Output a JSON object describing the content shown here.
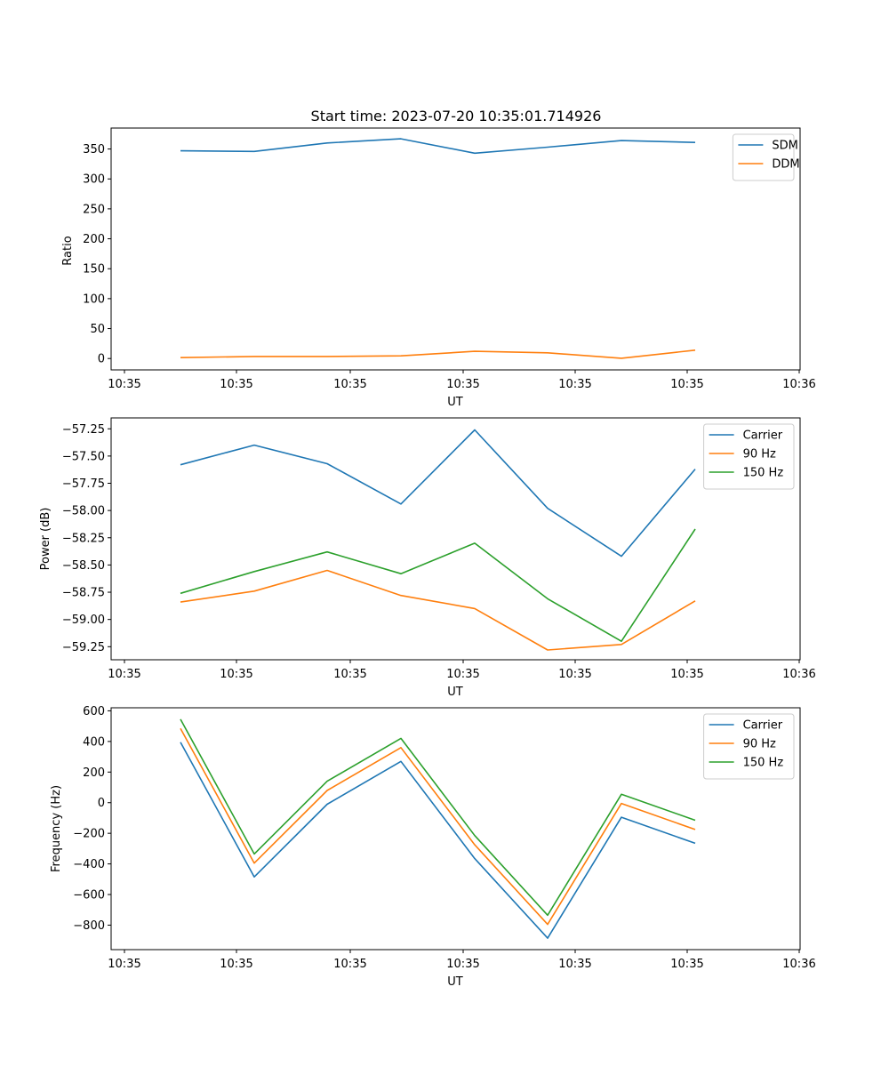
{
  "colors": {
    "c0": "#1f77b4",
    "c1": "#ff7f0e",
    "c2": "#2ca02c",
    "frame": "#000000",
    "legend_border": "#cccccc"
  },
  "chart_data": [
    {
      "type": "line",
      "title": "Start time: 2023-07-20 10:35:01.714926",
      "xlabel": "UT",
      "ylabel": "Ratio",
      "xticks": [
        "10:35",
        "10:35",
        "10:35",
        "10:35",
        "10:35",
        "10:35",
        "10:36"
      ],
      "yticks": [
        0,
        50,
        100,
        150,
        200,
        250,
        300,
        350
      ],
      "ylim": [
        -19,
        385
      ],
      "legend_position": "top-right",
      "series": [
        {
          "name": "SDM",
          "color": "#1f77b4",
          "values": [
            347,
            346,
            360,
            367,
            343,
            353,
            364,
            361
          ]
        },
        {
          "name": "DDM",
          "color": "#ff7f0e",
          "values": [
            1.5,
            3.5,
            3.5,
            4.5,
            12,
            9.5,
            0.5,
            14
          ]
        }
      ]
    },
    {
      "type": "line",
      "title": "",
      "xlabel": "UT",
      "ylabel": "Power (dB)",
      "xticks": [
        "10:35",
        "10:35",
        "10:35",
        "10:35",
        "10:35",
        "10:35",
        "10:36"
      ],
      "yticks": [
        "-59.25",
        "-59.00",
        "-58.75",
        "-58.50",
        "-58.25",
        "-58.00",
        "-57.75",
        "-57.50",
        "-57.25"
      ],
      "ylim": [
        -59.37,
        -57.15
      ],
      "legend_position": "top-right",
      "series": [
        {
          "name": "Carrier",
          "color": "#1f77b4",
          "values": [
            -57.58,
            -57.4,
            -57.57,
            -57.94,
            -57.26,
            -57.98,
            -58.42,
            -57.62
          ]
        },
        {
          "name": "90 Hz",
          "color": "#ff7f0e",
          "values": [
            -58.84,
            -58.74,
            -58.55,
            -58.78,
            -58.9,
            -59.28,
            -59.23,
            -58.83
          ]
        },
        {
          "name": "150 Hz",
          "color": "#2ca02c",
          "values": [
            -58.76,
            -58.56,
            -58.38,
            -58.58,
            -58.3,
            -58.81,
            -59.2,
            -58.17
          ]
        }
      ]
    },
    {
      "type": "line",
      "title": "",
      "xlabel": "UT",
      "ylabel": "Frequency (Hz)",
      "xticks": [
        "10:35",
        "10:35",
        "10:35",
        "10:35",
        "10:35",
        "10:35",
        "10:36"
      ],
      "yticks": [
        -800,
        -600,
        -400,
        -200,
        0,
        200,
        400,
        600
      ],
      "ylim": [
        -960,
        620
      ],
      "legend_position": "top-right",
      "series": [
        {
          "name": "Carrier",
          "color": "#1f77b4",
          "values": [
            395,
            -485,
            -10,
            270,
            -365,
            -885,
            -95,
            -265
          ]
        },
        {
          "name": "90 Hz",
          "color": "#ff7f0e",
          "values": [
            485,
            -395,
            80,
            360,
            -275,
            -795,
            -5,
            -175
          ]
        },
        {
          "name": "150 Hz",
          "color": "#2ca02c",
          "values": [
            545,
            -335,
            140,
            420,
            -215,
            -735,
            55,
            -115
          ]
        }
      ]
    }
  ]
}
